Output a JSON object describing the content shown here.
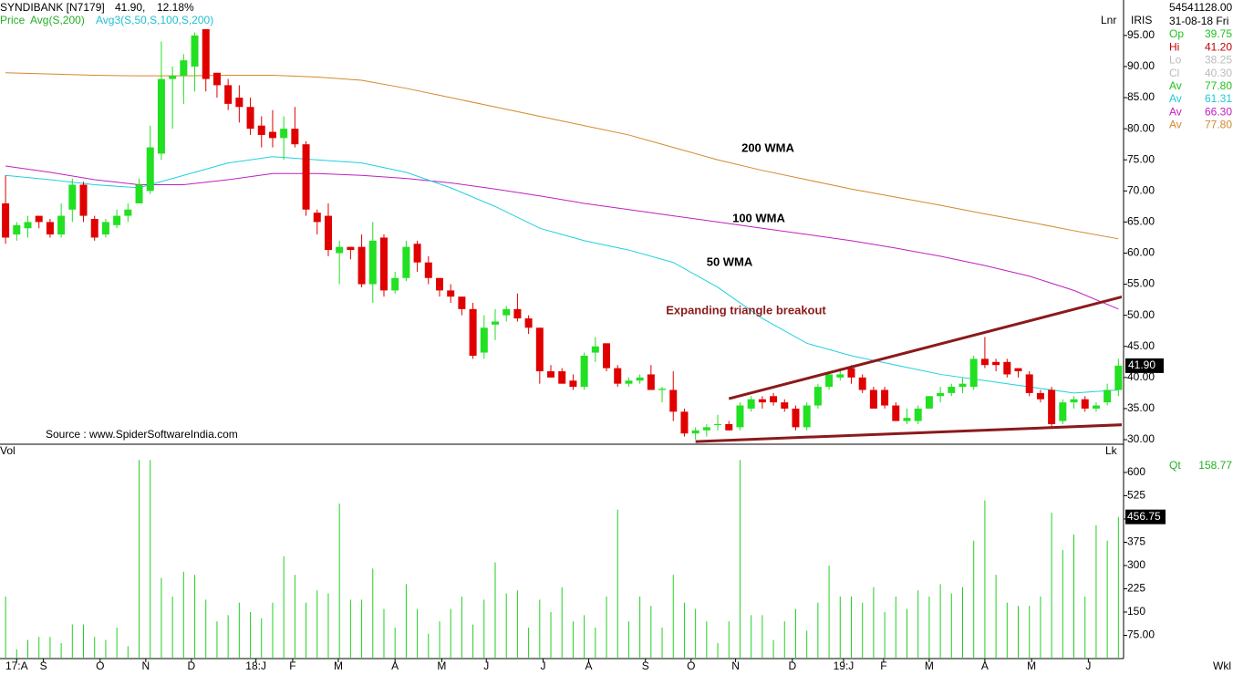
{
  "chart_data": {
    "type": "candlestick",
    "header": {
      "symbol": "SYNDIBANK [N7179]",
      "price": "41.90,",
      "change": "12.18%"
    },
    "legend": [
      "Price",
      "Avg(S,200)",
      "Avg3(S,50,S,100,S,200)"
    ],
    "scale_label": "Lnr",
    "source": "Source : www.SpiderSoftwareIndia.com",
    "annotations": [
      "200 WMA",
      "100 WMA",
      "50 WMA",
      "Expanding triangle breakout"
    ],
    "up_color": "#22e022",
    "down_color": "#e00000",
    "open": [
      68,
      63,
      64,
      66,
      65,
      63,
      67,
      71,
      65.5,
      63,
      64.5,
      66,
      68,
      70,
      76,
      88,
      88.5,
      90,
      96,
      89,
      87,
      85,
      83.5,
      80.5,
      79.5,
      78.5,
      80,
      77.5,
      66.5,
      66,
      60,
      61,
      61,
      55,
      62.5,
      54,
      56,
      61.5,
      58.5,
      56,
      54,
      53,
      51,
      44,
      48.5,
      50,
      51,
      49.5,
      48,
      41,
      41,
      39.5,
      38.5,
      44,
      45.5,
      41.5,
      39,
      39.5,
      40.5,
      38,
      38,
      34.5,
      31,
      31.5,
      32.5,
      32.5,
      32,
      35,
      36.5,
      37,
      36,
      35,
      32,
      35.5,
      38.5,
      40,
      41.5,
      40,
      38,
      38,
      35.5,
      33,
      33,
      35,
      37,
      37.5,
      38.5,
      38.5,
      43,
      42.5,
      42.5,
      41.5,
      40.5,
      37.5,
      38,
      33,
      36,
      36.5,
      35,
      36,
      38
    ],
    "high": [
      72.5,
      65,
      66,
      66,
      65.5,
      68,
      72,
      71.5,
      66,
      65.5,
      67,
      68,
      72,
      80.5,
      94,
      90,
      92,
      95.5,
      96,
      89,
      88,
      87,
      85,
      82,
      83,
      82,
      83.5,
      78,
      67,
      68,
      62,
      61,
      63,
      65,
      63,
      57,
      62,
      62,
      59.5,
      56,
      55,
      53,
      52,
      50,
      51,
      51.5,
      53.5,
      50,
      48,
      42,
      41.5,
      40.5,
      44,
      46.5,
      45.5,
      42,
      40,
      40.5,
      42,
      38.5,
      41,
      35,
      32,
      32.5,
      34,
      33,
      36,
      37,
      37,
      37.5,
      36.5,
      35.5,
      36,
      39,
      41,
      41.5,
      42,
      40.5,
      38.5,
      38.5,
      36,
      35,
      35.5,
      37,
      38.5,
      39,
      40,
      43.5,
      46.5,
      43,
      43,
      41,
      41,
      38,
      38.5,
      36.5,
      37,
      37,
      36,
      39,
      43
    ],
    "low": [
      61.5,
      62,
      62.5,
      64,
      62.5,
      62.5,
      65,
      65,
      62,
      62.5,
      64,
      65,
      68,
      69.5,
      75,
      80,
      84,
      86,
      86,
      85,
      83,
      81,
      79,
      77,
      77,
      75,
      77,
      66,
      63,
      59.5,
      55,
      59,
      54.5,
      52,
      53,
      53.5,
      55.5,
      57,
      55,
      53,
      52,
      50,
      43,
      43,
      46,
      49,
      49,
      47,
      39,
      40,
      39,
      38,
      38,
      42.5,
      41,
      38.5,
      38.5,
      39,
      38,
      36,
      33,
      30.5,
      30,
      30.5,
      31.5,
      31.5,
      31.5,
      34.5,
      35,
      35.5,
      34.5,
      31.5,
      31.5,
      35,
      38,
      39.5,
      39,
      37.5,
      35,
      35,
      33,
      32.5,
      32.5,
      35,
      36,
      37,
      37.5,
      38,
      41.5,
      41,
      40,
      40,
      37,
      36,
      32,
      32.5,
      35,
      34.5,
      34.5,
      35.5,
      37
    ],
    "close": [
      62.5,
      64.5,
      65,
      65,
      63,
      66,
      71,
      66,
      62.5,
      65,
      66,
      67,
      71,
      77,
      88,
      88.5,
      91,
      95,
      88,
      87,
      84,
      83.5,
      80,
      79,
      78.5,
      80,
      77.5,
      67,
      65,
      60.5,
      61,
      60.5,
      55,
      62,
      54,
      56,
      61,
      58.5,
      56,
      54,
      53,
      51,
      43.5,
      48,
      49,
      51,
      49.5,
      48,
      41,
      40,
      39,
      38.5,
      43.5,
      45,
      41.5,
      39,
      39.5,
      40,
      38,
      38.2,
      34.5,
      31,
      31.5,
      32,
      32.5,
      31.5,
      35.5,
      36.5,
      36,
      36,
      35,
      32,
      35.5,
      38.5,
      40.5,
      40.5,
      40,
      38,
      35,
      35.5,
      33,
      33.5,
      35,
      37,
      37.5,
      38.5,
      39,
      43,
      42,
      42,
      40.5,
      41,
      37.5,
      36.5,
      32.5,
      36,
      36.5,
      35,
      35.5,
      38,
      41.9
    ],
    "xlim": [
      -0.5,
      100.3
    ],
    "xticks": [
      {
        "value": 1,
        "label": "17:A"
      },
      {
        "value": 3.4,
        "label": "S"
      },
      {
        "value": 8.5,
        "label": "O"
      },
      {
        "value": 12.6,
        "label": "N"
      },
      {
        "value": 16.7,
        "label": "D"
      },
      {
        "value": 22.5,
        "label": "18:J"
      },
      {
        "value": 25.8,
        "label": "F"
      },
      {
        "value": 29.9,
        "label": "M"
      },
      {
        "value": 35,
        "label": "A"
      },
      {
        "value": 39.2,
        "label": "M"
      },
      {
        "value": 43.2,
        "label": "J"
      },
      {
        "value": 48.3,
        "label": "J"
      },
      {
        "value": 52.4,
        "label": "A"
      },
      {
        "value": 57.5,
        "label": "S"
      },
      {
        "value": 61.6,
        "label": "O"
      },
      {
        "value": 65.6,
        "label": "N"
      },
      {
        "value": 70.7,
        "label": "D"
      },
      {
        "value": 75.3,
        "label": "19:J"
      },
      {
        "value": 78.9,
        "label": "F"
      },
      {
        "value": 83,
        "label": "M"
      },
      {
        "value": 88,
        "label": "A"
      },
      {
        "value": 92.2,
        "label": "M"
      },
      {
        "value": 97.3,
        "label": "J"
      }
    ],
    "ylim": [
      29.27,
      100.7
    ],
    "yticks": [
      {
        "value": 30,
        "label": "30.00"
      },
      {
        "value": 35,
        "label": "35.00"
      },
      {
        "value": 40,
        "label": "40.00"
      },
      {
        "value": 45,
        "label": "45.00"
      },
      {
        "value": 50,
        "label": "50.00"
      },
      {
        "value": 55,
        "label": "55.00"
      },
      {
        "value": 60,
        "label": "60.00"
      },
      {
        "value": 65,
        "label": "65.00"
      },
      {
        "value": 70,
        "label": "70.00"
      },
      {
        "value": 75,
        "label": "75.00"
      },
      {
        "value": 80,
        "label": "80.00"
      },
      {
        "value": 85,
        "label": "85.00"
      },
      {
        "value": 90,
        "label": "90.00"
      },
      {
        "value": 95,
        "label": "95.00"
      }
    ],
    "last_label": "41.90",
    "averages": [
      {
        "color": "#d2892b",
        "x": [
          0,
          4,
          8,
          12,
          16,
          20,
          24,
          28,
          32,
          36,
          40,
          44,
          48,
          52,
          56,
          60,
          64,
          68,
          72,
          76,
          80,
          84,
          88,
          92,
          96,
          100
        ],
        "values": [
          89,
          88.8,
          88.6,
          88.5,
          88.5,
          88.6,
          88.6,
          88.3,
          87.8,
          86.5,
          85,
          83.5,
          82,
          80.5,
          79,
          77,
          75,
          73.3,
          71.8,
          70.3,
          69,
          67.7,
          66.3,
          65,
          63.6,
          62.3
        ]
      },
      {
        "color": "#c020c0",
        "x": [
          0,
          4,
          8,
          12,
          16,
          20,
          24,
          28,
          32,
          36,
          40,
          44,
          48,
          52,
          56,
          60,
          64,
          68,
          72,
          76,
          80,
          84,
          88,
          92,
          96,
          100
        ],
        "values": [
          74,
          73,
          71.8,
          71,
          71,
          71.8,
          72.8,
          72.8,
          72.5,
          72,
          71.3,
          70.3,
          69.2,
          68,
          67,
          66,
          65,
          64,
          63,
          62,
          60.8,
          59.5,
          58,
          56.3,
          54,
          51
        ]
      },
      {
        "color": "#20d0e0",
        "x": [
          0,
          4,
          8,
          12,
          16,
          20,
          24,
          28,
          32,
          36,
          40,
          44,
          48,
          52,
          56,
          60,
          64,
          68,
          72,
          76,
          80,
          84,
          88,
          92,
          96,
          100
        ],
        "values": [
          72.5,
          71.8,
          71,
          70.5,
          72.5,
          74.5,
          75.5,
          75,
          74.5,
          73,
          70.5,
          67.5,
          64,
          62,
          60.5,
          58.5,
          54.5,
          49.5,
          45.5,
          43.5,
          42,
          40.5,
          39.5,
          38.5,
          37.5,
          38
        ]
      }
    ],
    "trendlines": [
      {
        "color": "#8b1a1a",
        "x": [
          65,
          103.2
        ],
        "values": [
          36.6,
          54.3
        ]
      },
      {
        "color": "#8b1a1a",
        "x": [
          62,
          110.3
        ],
        "values": [
          29.7,
          33.1
        ]
      }
    ],
    "volume": {
      "name": "Vol",
      "corner_label": "Lk",
      "axis_label": "Wkl",
      "color": "#22d022",
      "values": [
        200,
        30,
        60,
        70,
        70,
        50,
        110,
        110,
        70,
        60,
        100,
        40,
        640,
        640,
        260,
        200,
        280,
        270,
        190,
        120,
        140,
        180,
        150,
        130,
        180,
        330,
        270,
        180,
        220,
        210,
        500,
        190,
        190,
        290,
        160,
        100,
        240,
        160,
        80,
        120,
        160,
        200,
        110,
        190,
        310,
        210,
        220,
        100,
        190,
        150,
        230,
        120,
        140,
        100,
        200,
        480,
        120,
        200,
        170,
        100,
        270,
        180,
        160,
        120,
        50,
        120,
        640,
        140,
        140,
        60,
        120,
        160,
        90,
        180,
        300,
        200,
        200,
        180,
        230,
        150,
        200,
        160,
        220,
        200,
        240,
        210,
        230,
        380,
        510,
        270,
        180,
        170,
        170,
        200,
        470,
        350,
        400,
        200,
        430,
        380,
        456.75
      ],
      "ylim": [
        0,
        691
      ],
      "yticks": [
        {
          "value": 75,
          "label": "75.00"
        },
        150,
        225,
        300,
        375,
        450,
        525,
        600
      ],
      "last_label": "456.75",
      "qt": [
        "Qt",
        "158.77"
      ]
    },
    "info": {
      "name": "IRIS",
      "total": "54541128.00",
      "date": "31-08-18 Fri",
      "rows": [
        {
          "label": "Op",
          "value": "39.75",
          "color": "#22c022"
        },
        {
          "label": "Hi",
          "value": "41.20",
          "color": "#c00000"
        },
        {
          "label": "Lo",
          "value": "38.25",
          "color": "#bbbbbb"
        },
        {
          "label": "Cl",
          "value": "40.30",
          "color": "#bbbbbb"
        },
        {
          "label": "Av",
          "value": "77.80",
          "color": "#22c022"
        },
        {
          "label": "Av",
          "value": "61.31",
          "color": "#20c8d8"
        },
        {
          "label": "Av",
          "value": "66.30",
          "color": "#c020c0"
        },
        {
          "label": "Av",
          "value": "77.80",
          "color": "#d2892b"
        }
      ]
    }
  }
}
